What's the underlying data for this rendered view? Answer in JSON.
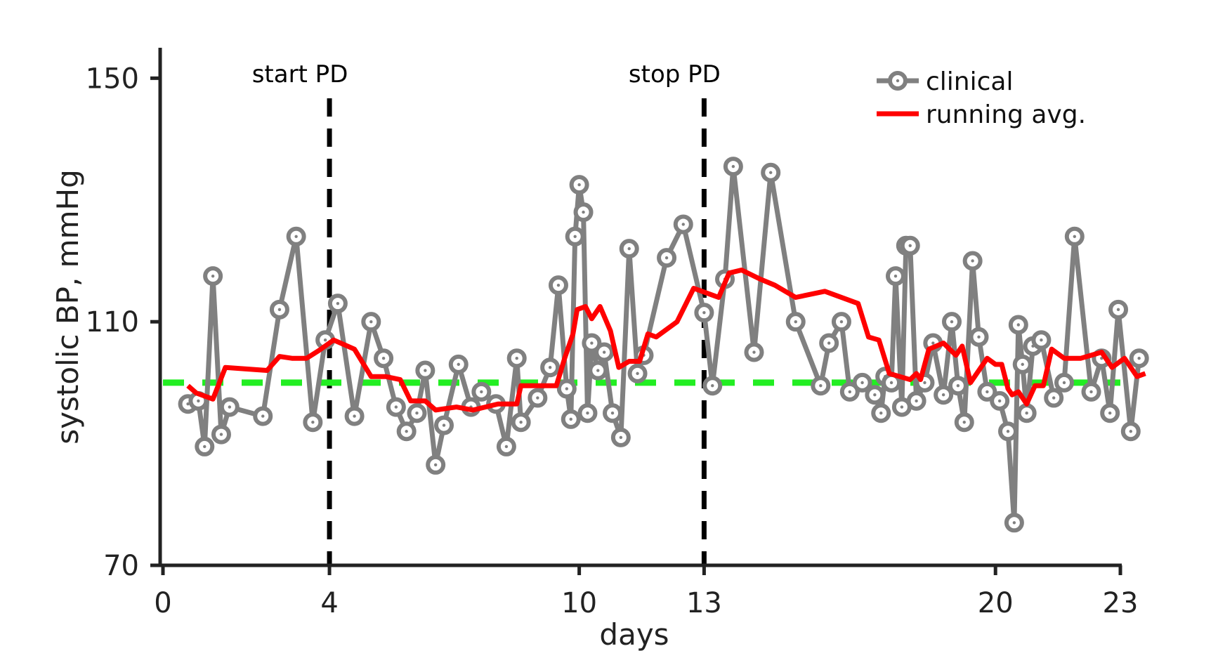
{
  "chart_data": {
    "type": "line",
    "title": "",
    "xlabel": "days",
    "ylabel": "systolic BP, mmHg",
    "xlim": [
      0,
      23
    ],
    "ylim": [
      70,
      155
    ],
    "xticks": [
      0,
      4,
      10,
      13,
      20,
      23
    ],
    "yticks": [
      70,
      110,
      150
    ],
    "grid": false,
    "legend_position": "top-right",
    "colors": {
      "clinical": "#808080",
      "running_avg": "#ff0000",
      "baseline": "#22ee22",
      "markers": "#000000",
      "axis": "#222222"
    },
    "annotations": [
      {
        "x": 4,
        "label": "start PD"
      },
      {
        "x": 13,
        "label": "stop PD"
      }
    ],
    "reference_line": {
      "y": 100
    },
    "series": [
      {
        "name": "clinical",
        "style": "line-with-circle-markers",
        "points": [
          [
            0.6,
            96.5
          ],
          [
            0.85,
            97.0
          ],
          [
            1.0,
            89.5
          ],
          [
            1.2,
            117.5
          ],
          [
            1.4,
            91.5
          ],
          [
            1.6,
            96.0
          ],
          [
            2.4,
            94.5
          ],
          [
            2.8,
            112.0
          ],
          [
            3.2,
            124.0
          ],
          [
            3.6,
            93.5
          ],
          [
            3.9,
            107.0
          ],
          [
            4.2,
            113.0
          ],
          [
            4.6,
            94.5
          ],
          [
            5.0,
            110.0
          ],
          [
            5.3,
            104.0
          ],
          [
            5.6,
            96.0
          ],
          [
            5.85,
            92.0
          ],
          [
            6.1,
            95.0
          ],
          [
            6.3,
            102.0
          ],
          [
            6.55,
            86.5
          ],
          [
            6.75,
            93.0
          ],
          [
            7.1,
            103.0
          ],
          [
            7.4,
            96.0
          ],
          [
            7.65,
            98.5
          ],
          [
            8.0,
            96.5
          ],
          [
            8.25,
            89.5
          ],
          [
            8.5,
            104.0
          ],
          [
            8.6,
            93.5
          ],
          [
            9.0,
            97.5
          ],
          [
            9.3,
            102.5
          ],
          [
            9.5,
            116.0
          ],
          [
            9.7,
            99.0
          ],
          [
            9.8,
            94.0
          ],
          [
            9.9,
            124.0
          ],
          [
            10.0,
            132.5
          ],
          [
            10.1,
            128.0
          ],
          [
            10.2,
            95.0
          ],
          [
            10.3,
            106.5
          ],
          [
            10.45,
            102.0
          ],
          [
            10.6,
            105.0
          ],
          [
            10.8,
            95.0
          ],
          [
            11.0,
            91.0
          ],
          [
            11.2,
            122.0
          ],
          [
            11.4,
            101.5
          ],
          [
            11.55,
            104.5
          ],
          [
            12.1,
            120.5
          ],
          [
            12.5,
            126.0
          ],
          [
            13.0,
            111.5
          ],
          [
            13.2,
            99.5
          ],
          [
            13.5,
            117.0
          ],
          [
            13.7,
            135.5
          ],
          [
            14.2,
            105.0
          ],
          [
            14.6,
            134.5
          ],
          [
            15.2,
            110.0
          ],
          [
            15.8,
            99.5
          ],
          [
            16.0,
            106.5
          ],
          [
            16.3,
            110.0
          ],
          [
            16.5,
            98.5
          ],
          [
            16.8,
            100.0
          ],
          [
            17.1,
            98.0
          ],
          [
            17.25,
            95.0
          ],
          [
            17.35,
            101.0
          ],
          [
            17.5,
            100.0
          ],
          [
            17.6,
            117.5
          ],
          [
            17.75,
            96.0
          ],
          [
            17.85,
            122.5
          ],
          [
            17.95,
            122.5
          ],
          [
            18.1,
            97.0
          ],
          [
            18.3,
            100.0
          ],
          [
            18.5,
            106.5
          ],
          [
            18.75,
            98.0
          ],
          [
            18.95,
            110.0
          ],
          [
            19.1,
            99.5
          ],
          [
            19.25,
            93.5
          ],
          [
            19.45,
            120.0
          ],
          [
            19.6,
            107.5
          ],
          [
            19.8,
            98.5
          ],
          [
            20.1,
            97.0
          ],
          [
            20.3,
            92.0
          ],
          [
            20.45,
            77.0
          ],
          [
            20.55,
            109.5
          ],
          [
            20.65,
            103.0
          ],
          [
            20.75,
            95.0
          ],
          [
            20.9,
            106.0
          ],
          [
            21.1,
            107.0
          ],
          [
            21.4,
            97.5
          ],
          [
            21.65,
            100.0
          ],
          [
            21.9,
            124.0
          ],
          [
            22.3,
            98.5
          ],
          [
            22.55,
            104.0
          ],
          [
            22.75,
            95.0
          ],
          [
            22.95,
            112.0
          ],
          [
            23.25,
            92.0
          ],
          [
            23.45,
            104.0
          ]
        ]
      },
      {
        "name": "running avg.",
        "style": "line",
        "points": [
          [
            0.6,
            99.5
          ],
          [
            0.8,
            98.3
          ],
          [
            1.2,
            97.3
          ],
          [
            1.5,
            102.5
          ],
          [
            2.5,
            102.0
          ],
          [
            2.8,
            104.3
          ],
          [
            3.1,
            104.0
          ],
          [
            3.45,
            104.0
          ],
          [
            3.75,
            105.3
          ],
          [
            4.1,
            107.0
          ],
          [
            4.6,
            105.5
          ],
          [
            5.0,
            101.0
          ],
          [
            5.35,
            101.0
          ],
          [
            5.7,
            100.5
          ],
          [
            5.95,
            97.0
          ],
          [
            6.3,
            97.0
          ],
          [
            6.55,
            95.5
          ],
          [
            7.05,
            96.0
          ],
          [
            7.45,
            95.5
          ],
          [
            8.05,
            96.5
          ],
          [
            8.25,
            96.5
          ],
          [
            8.5,
            96.5
          ],
          [
            8.6,
            99.5
          ],
          [
            9.45,
            99.5
          ],
          [
            9.65,
            104.0
          ],
          [
            9.85,
            108.0
          ],
          [
            9.95,
            112.0
          ],
          [
            10.15,
            112.5
          ],
          [
            10.3,
            110.5
          ],
          [
            10.5,
            112.5
          ],
          [
            10.75,
            108.5
          ],
          [
            10.95,
            102.5
          ],
          [
            11.2,
            103.5
          ],
          [
            11.45,
            103.5
          ],
          [
            11.65,
            108.0
          ],
          [
            11.85,
            107.5
          ],
          [
            12.35,
            110.0
          ],
          [
            12.75,
            115.5
          ],
          [
            13.35,
            114.0
          ],
          [
            13.6,
            118.0
          ],
          [
            13.9,
            118.5
          ],
          [
            14.35,
            117.0
          ],
          [
            14.7,
            116.0
          ],
          [
            15.2,
            114.0
          ],
          [
            15.9,
            115.0
          ],
          [
            16.7,
            113.0
          ],
          [
            16.95,
            107.5
          ],
          [
            17.2,
            107.0
          ],
          [
            17.45,
            101.5
          ],
          [
            17.95,
            100.5
          ],
          [
            18.1,
            101.5
          ],
          [
            18.2,
            100.5
          ],
          [
            18.4,
            105.5
          ],
          [
            18.75,
            106.5
          ],
          [
            19.05,
            104.5
          ],
          [
            19.2,
            106.0
          ],
          [
            19.4,
            100.0
          ],
          [
            19.8,
            104.0
          ],
          [
            20.0,
            103.0
          ],
          [
            20.15,
            103.0
          ],
          [
            20.3,
            99.0
          ],
          [
            20.4,
            98.0
          ],
          [
            20.55,
            98.5
          ],
          [
            20.75,
            96.5
          ],
          [
            20.95,
            99.5
          ],
          [
            21.15,
            99.5
          ],
          [
            21.35,
            105.5
          ],
          [
            21.65,
            104.0
          ],
          [
            22.05,
            104.0
          ],
          [
            22.55,
            105.0
          ],
          [
            22.8,
            102.5
          ],
          [
            23.1,
            104.0
          ],
          [
            23.4,
            101.0
          ],
          [
            23.6,
            101.5
          ]
        ]
      }
    ]
  }
}
